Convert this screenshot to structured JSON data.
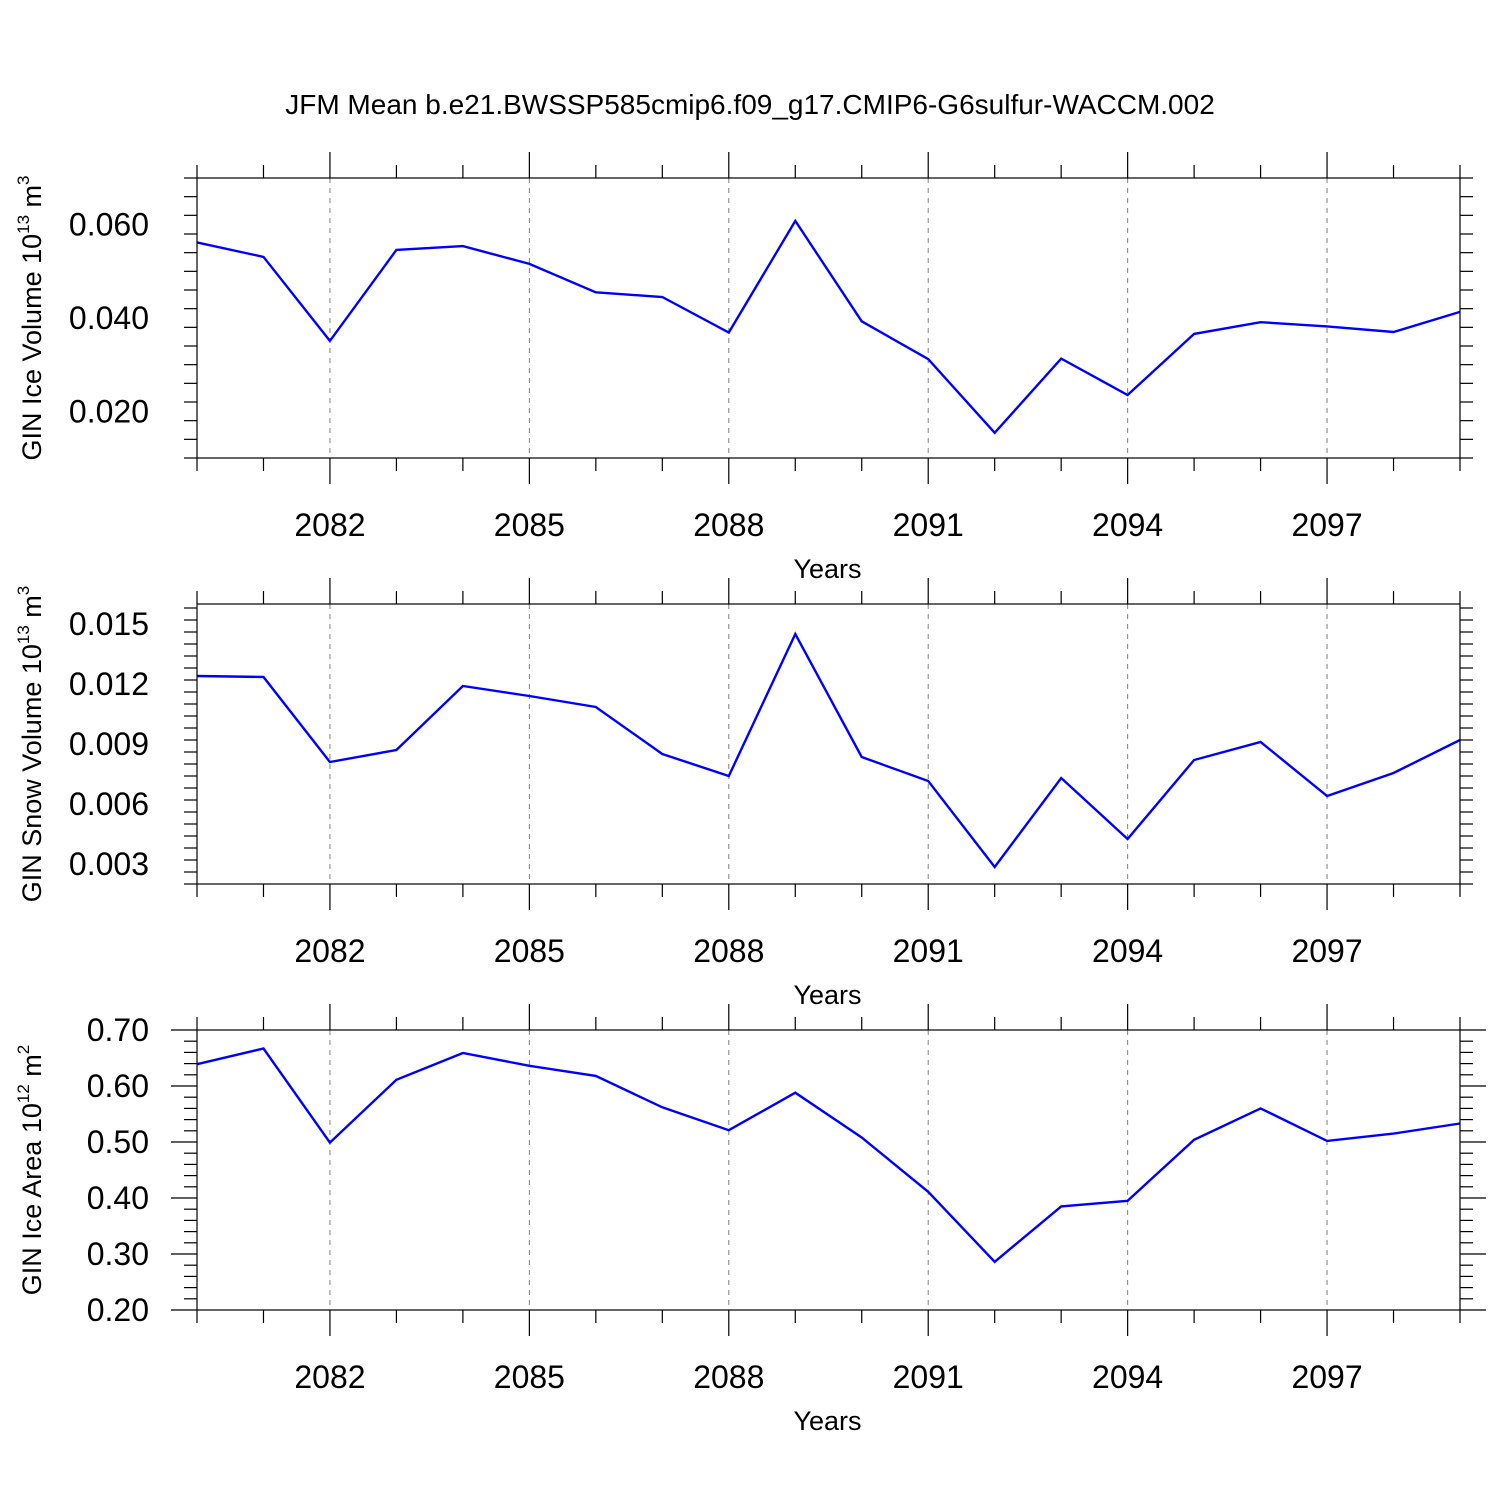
{
  "figure": {
    "title": "JFM Mean b.e21.BWSSP585cmip6.f09_g17.CMIP6-G6sulfur-WACCM.002"
  },
  "style": {
    "line_color": "#0000ff",
    "axis_color": "#000000",
    "grid_color": "#808080"
  },
  "chart_data": [
    {
      "type": "line",
      "ylabel_main": "GIN Ice Volume 10",
      "ylabel_exp": "13",
      "ylabel_unit": " m",
      "ylabel_unit_exp": "3",
      "xlabel": "Years",
      "xlim": [
        2080,
        2099
      ],
      "ylim": [
        0.01,
        0.07
      ],
      "xticks": [
        2082,
        2085,
        2088,
        2091,
        2094,
        2097
      ],
      "xtick_labels": [
        "2082",
        "2085",
        "2088",
        "2091",
        "2094",
        "2097"
      ],
      "yticks": [
        0.02,
        0.04,
        0.06
      ],
      "ytick_labels": [
        "0.020",
        "0.040",
        "0.060"
      ],
      "grid": "x-dashed",
      "x": [
        2080,
        2081,
        2082,
        2083,
        2084,
        2085,
        2086,
        2087,
        2088,
        2089,
        2090,
        2091,
        2092,
        2093,
        2094,
        2095,
        2096,
        2097,
        2098,
        2099
      ],
      "values": [
        0.0562,
        0.0531,
        0.0351,
        0.0546,
        0.0554,
        0.0516,
        0.0455,
        0.0445,
        0.0369,
        0.0608,
        0.0393,
        0.0312,
        0.0154,
        0.0313,
        0.0235,
        0.0366,
        0.0391,
        0.0382,
        0.037,
        0.0413
      ]
    },
    {
      "type": "line",
      "ylabel_main": "GIN Snow Volume 10",
      "ylabel_exp": "13",
      "ylabel_unit": " m",
      "ylabel_unit_exp": "3",
      "xlabel": "Years",
      "xlim": [
        2080,
        2099
      ],
      "ylim": [
        0.002,
        0.016
      ],
      "xticks": [
        2082,
        2085,
        2088,
        2091,
        2094,
        2097
      ],
      "xtick_labels": [
        "2082",
        "2085",
        "2088",
        "2091",
        "2094",
        "2097"
      ],
      "yticks": [
        0.003,
        0.006,
        0.009,
        0.012,
        0.015
      ],
      "ytick_labels": [
        "0.003",
        "0.006",
        "0.009",
        "0.012",
        "0.015"
      ],
      "grid": "x-dashed",
      "x": [
        2080,
        2081,
        2082,
        2083,
        2084,
        2085,
        2086,
        2087,
        2088,
        2089,
        2090,
        2091,
        2092,
        2093,
        2094,
        2095,
        2096,
        2097,
        2098,
        2099
      ],
      "values": [
        0.0124,
        0.01235,
        0.0081,
        0.0087,
        0.0119,
        0.0114,
        0.01085,
        0.0085,
        0.0074,
        0.0145,
        0.00835,
        0.00715,
        0.00285,
        0.0073,
        0.00425,
        0.0082,
        0.0091,
        0.0064,
        0.00755,
        0.0092
      ]
    },
    {
      "type": "line",
      "ylabel_main": "GIN Ice Area 10",
      "ylabel_exp": "12",
      "ylabel_unit": " m",
      "ylabel_unit_exp": "2",
      "xlabel": "Years",
      "xlim": [
        2080,
        2099
      ],
      "ylim": [
        0.2,
        0.7
      ],
      "xticks": [
        2082,
        2085,
        2088,
        2091,
        2094,
        2097
      ],
      "xtick_labels": [
        "2082",
        "2085",
        "2088",
        "2091",
        "2094",
        "2097"
      ],
      "yticks": [
        0.2,
        0.3,
        0.4,
        0.5,
        0.6,
        0.7
      ],
      "ytick_labels": [
        "0.20",
        "0.30",
        "0.40",
        "0.50",
        "0.60",
        "0.70"
      ],
      "grid": "x-dashed",
      "x": [
        2080,
        2081,
        2082,
        2083,
        2084,
        2085,
        2086,
        2087,
        2088,
        2089,
        2090,
        2091,
        2092,
        2093,
        2094,
        2095,
        2096,
        2097,
        2098,
        2099
      ],
      "values": [
        0.639,
        0.667,
        0.499,
        0.611,
        0.659,
        0.636,
        0.618,
        0.562,
        0.521,
        0.588,
        0.508,
        0.411,
        0.286,
        0.385,
        0.395,
        0.504,
        0.56,
        0.502,
        0.515,
        0.533
      ]
    }
  ]
}
